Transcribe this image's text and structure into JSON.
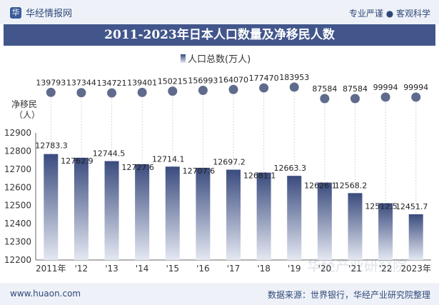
{
  "header": {
    "brand": "华经情报网",
    "slogan": "专业严谨 ● 客观科学"
  },
  "title": "2011-2023年日本人口数量及净移民人数",
  "footer": {
    "website": "www.huaon.com",
    "source": "数据来源：世界银行，华经产业研究院整理"
  },
  "watermark": "华经产业研究院",
  "chart_data": {
    "type": "bar",
    "categories": [
      "2011年",
      "'12",
      "'13",
      "'14",
      "'15",
      "'16",
      "'17",
      "'18",
      "'19",
      "'20",
      "'21",
      "'22",
      "2023年"
    ],
    "series": [
      {
        "name": "人口总数(万人)",
        "values": [
          12783.3,
          12762.9,
          12744.5,
          12727.6,
          12714.1,
          12707.6,
          12697.2,
          12681.1,
          12663.3,
          12626.1,
          12568.2,
          12512.5,
          12451.7
        ],
        "labels": [
          "12783.3",
          "12762.9",
          "12744.5",
          "12727.6",
          "12714.1",
          "12707.6",
          "12697.2",
          "12681.1",
          "12663.3",
          "12626.1",
          "12568.2",
          "12512.5",
          "12451.7"
        ]
      },
      {
        "name": "净移民（人）",
        "values": [
          139793,
          137344,
          134721,
          139401,
          150215,
          156993,
          164070,
          177470,
          183953,
          87584,
          87584,
          99994,
          99994
        ],
        "labels": [
          "139793",
          "137344",
          "134721",
          "139401",
          "150215",
          "156993",
          "164070",
          "177470",
          "183953",
          "87584",
          "87584",
          "99994",
          "99994"
        ]
      }
    ],
    "ylim": [
      12200,
      12900
    ],
    "yticks": [
      "12200",
      "12300",
      "12400",
      "12500",
      "12600",
      "12700",
      "12800",
      "12900"
    ],
    "ylabel_top": "净移民（人）",
    "legend": "人口总数(万人)",
    "legend_position": "top-center",
    "colors": {
      "bar_top": "#3a4b7e",
      "bar_bottom": "#e4e8f2",
      "dot": "#5f6b8c",
      "title_bg": "#42568c"
    }
  }
}
